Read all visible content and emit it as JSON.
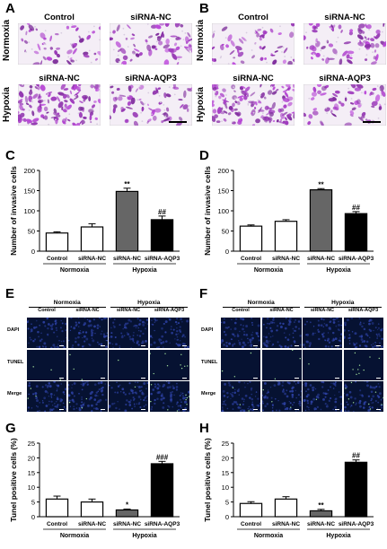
{
  "figure": {
    "panels": {
      "A": "A",
      "B": "B",
      "C": "C",
      "D": "D",
      "E": "E",
      "F": "F",
      "G": "G",
      "H": "H"
    },
    "invasion": {
      "row_labels": [
        "Normoxia",
        "Hypoxia"
      ],
      "cell_labels": [
        [
          "Control",
          "siRNA-NC"
        ],
        [
          "siRNA-NC",
          "siRNA-AQP3"
        ]
      ],
      "cell_density": [
        [
          0.25,
          0.4
        ],
        [
          0.9,
          0.35
        ]
      ]
    },
    "tunel_images": {
      "group_headers": [
        "Normoxia",
        "Hypoxia"
      ],
      "column_labels": [
        "Control",
        "siRNA-NC",
        "siRNA-NC",
        "siRNA-AQP3"
      ],
      "row_labels": [
        "DAPI",
        "TUNEL",
        "Merge"
      ],
      "colors": {
        "dapi": "#2b3f9e",
        "tunel": "#9fdc9a",
        "background": "#061232"
      }
    }
  },
  "chart_data": [
    {
      "panel": "C",
      "type": "bar",
      "categories": [
        "Control",
        "siRNA-NC",
        "siRNA-NC",
        "siRNA-AQP3"
      ],
      "groups": [
        "Normoxia",
        "Hypoxia"
      ],
      "values": [
        45,
        60,
        148,
        78
      ],
      "errors": [
        3,
        8,
        8,
        9
      ],
      "annotations": [
        "",
        "",
        "**",
        "##"
      ],
      "fills": [
        "#ffffff",
        "#ffffff",
        "#666666",
        "#000000"
      ],
      "ylabel": "Number of invasive cells",
      "ylim": [
        0,
        200
      ],
      "yticks": [
        0,
        50,
        100,
        150,
        200
      ]
    },
    {
      "panel": "D",
      "type": "bar",
      "categories": [
        "Control",
        "siRNA-NC",
        "siRNA-NC",
        "siRNA-AQP3"
      ],
      "groups": [
        "Normoxia",
        "Hypoxia"
      ],
      "values": [
        62,
        74,
        152,
        93
      ],
      "errors": [
        3,
        4,
        3,
        5
      ],
      "annotations": [
        "",
        "",
        "**",
        "##"
      ],
      "fills": [
        "#ffffff",
        "#ffffff",
        "#666666",
        "#000000"
      ],
      "ylabel": "Number of invasive cells",
      "ylim": [
        0,
        200
      ],
      "yticks": [
        0,
        50,
        100,
        150,
        200
      ]
    },
    {
      "panel": "G",
      "type": "bar",
      "categories": [
        "Control",
        "siRNA-NC",
        "siRNA-NC",
        "siRNA-AQP3"
      ],
      "groups": [
        "Normoxia",
        "Hypoxia"
      ],
      "values": [
        6,
        5,
        2.3,
        18
      ],
      "errors": [
        1,
        1,
        0.3,
        0.8
      ],
      "annotations": [
        "",
        "",
        "*",
        "###"
      ],
      "fills": [
        "#ffffff",
        "#ffffff",
        "#666666",
        "#000000"
      ],
      "ylabel": "Tunel positive cells (%)",
      "ylim": [
        0,
        25
      ],
      "yticks": [
        0,
        5,
        10,
        15,
        20,
        25
      ]
    },
    {
      "panel": "H",
      "type": "bar",
      "categories": [
        "Control",
        "siRNA-NC",
        "siRNA-NC",
        "siRNA-AQP3"
      ],
      "groups": [
        "Normoxia",
        "Hypoxia"
      ],
      "values": [
        4.5,
        6,
        2,
        18.5
      ],
      "errors": [
        0.6,
        0.8,
        0.5,
        0.8
      ],
      "annotations": [
        "",
        "",
        "**",
        "##"
      ],
      "fills": [
        "#ffffff",
        "#ffffff",
        "#666666",
        "#000000"
      ],
      "ylabel": "Tunel positive cells (%)",
      "ylim": [
        0,
        25
      ],
      "yticks": [
        0,
        5,
        10,
        15,
        20,
        25
      ]
    }
  ]
}
